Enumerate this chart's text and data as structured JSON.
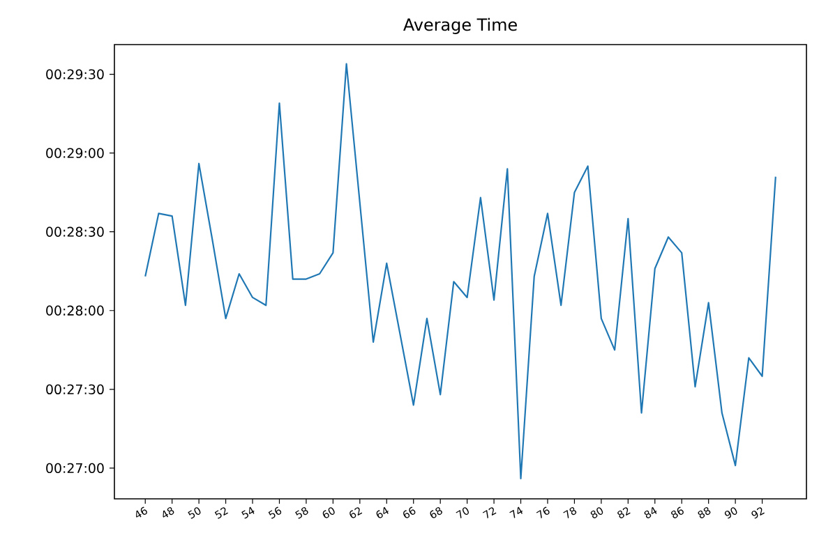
{
  "chart_data": {
    "type": "line",
    "title": "Average Time",
    "x": [
      46,
      47,
      48,
      49,
      50,
      51,
      52,
      53,
      54,
      55,
      56,
      57,
      58,
      59,
      60,
      61,
      62,
      63,
      64,
      65,
      66,
      67,
      68,
      69,
      70,
      71,
      72,
      73,
      74,
      75,
      76,
      77,
      78,
      79,
      80,
      81,
      82,
      83,
      84,
      85,
      86,
      87,
      88,
      89,
      90,
      91,
      92,
      93
    ],
    "series": [
      {
        "color": "#1f77b4",
        "values": [
          1693,
          1717,
          1716,
          1682,
          1736,
          1707,
          1677,
          1694,
          1685,
          1682,
          1759,
          1692,
          1692,
          1694,
          1702,
          1774,
          1721,
          1668,
          1698,
          1671,
          1644,
          1677,
          1648,
          1691,
          1685,
          1723,
          1684,
          1734,
          1616,
          1693,
          1717,
          1682,
          1725,
          1735,
          1677,
          1665,
          1715,
          1641,
          1696,
          1708,
          1702,
          1651,
          1683,
          1641,
          1621,
          1662,
          1655,
          1731
        ]
      }
    ],
    "xlim": [
      43.7,
      95.3
    ],
    "ylim": [
      1608.3,
      1781.3
    ],
    "xticks": [
      46,
      48,
      50,
      52,
      54,
      56,
      58,
      60,
      62,
      64,
      66,
      68,
      70,
      72,
      74,
      76,
      78,
      80,
      82,
      84,
      86,
      88,
      90,
      92
    ],
    "yticks": [
      {
        "value": 1620,
        "label": "00:27:00"
      },
      {
        "value": 1650,
        "label": "00:27:30"
      },
      {
        "value": 1680,
        "label": "00:28:00"
      },
      {
        "value": 1710,
        "label": "00:28:30"
      },
      {
        "value": 1740,
        "label": "00:29:00"
      },
      {
        "value": 1770,
        "label": "00:29:30"
      }
    ],
    "marker": "none",
    "line_style": "solid"
  }
}
